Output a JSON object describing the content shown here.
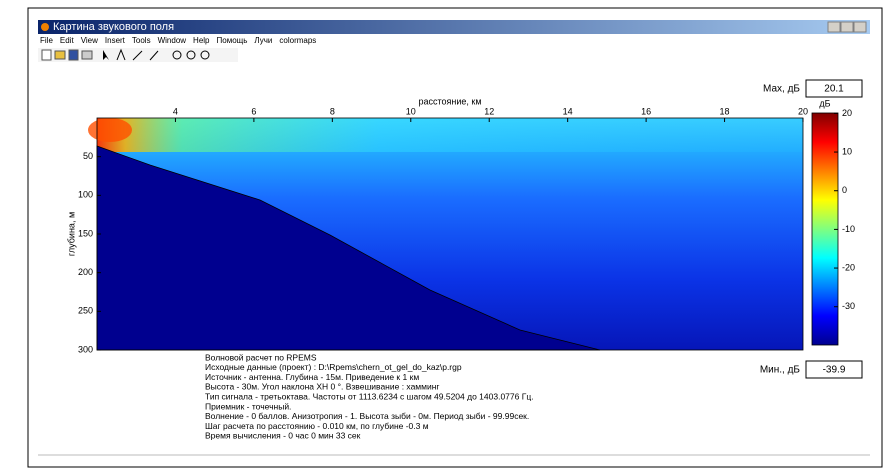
{
  "window": {
    "title": "Картина звукового поля",
    "menu": [
      "File",
      "Edit",
      "View",
      "Insert",
      "Tools",
      "Window",
      "Help",
      "Помощь",
      "Лучи",
      "colormaps"
    ]
  },
  "chart_data": {
    "type": "heatmap",
    "x_label": "расстояние, км",
    "y_label": "глубина, м",
    "xlim": [
      2,
      20
    ],
    "xticks": [
      4,
      6,
      8,
      10,
      12,
      14,
      16,
      18,
      20
    ],
    "ylim": [
      0,
      300
    ],
    "yticks": [
      50,
      100,
      150,
      200,
      250,
      300
    ],
    "y_reversed": true,
    "colorbar": {
      "label": "дБ",
      "ticks": [
        20,
        10,
        0,
        -10,
        -20,
        -30
      ]
    }
  },
  "max_field": {
    "label": "Мах, дБ",
    "value": 20.1
  },
  "min_field": {
    "label": "Мин., дБ",
    "value": -39.9
  },
  "info": [
    "Волновой расчет по RPEMS",
    "Исходные данные (проект) : D:\\Rpems\\chern_ot_gel_do_kaz\\p.rgp",
    "Источник - антенна.  Глубина - 15м.  Приведение к 1 км",
    "Высота - 30м. Угол наклона ХН  0 °. Взвешивание : хамминг",
    "Тип сигнала - третьоктава. Частоты от 1113.6234 с шагом 49.5204 до 1403.0776 Гц.",
    "Приемник - точечный.",
    "Волнение - 0 баллов. Анизотропия - 1. Высота зыби - 0м. Период зыби - 99.99сек.",
    "Шаг расчета по расстоянию - 0.010 км, по глубине -0.3 м",
    "Время вычисления - 0 час 0 мин 33 сек"
  ]
}
